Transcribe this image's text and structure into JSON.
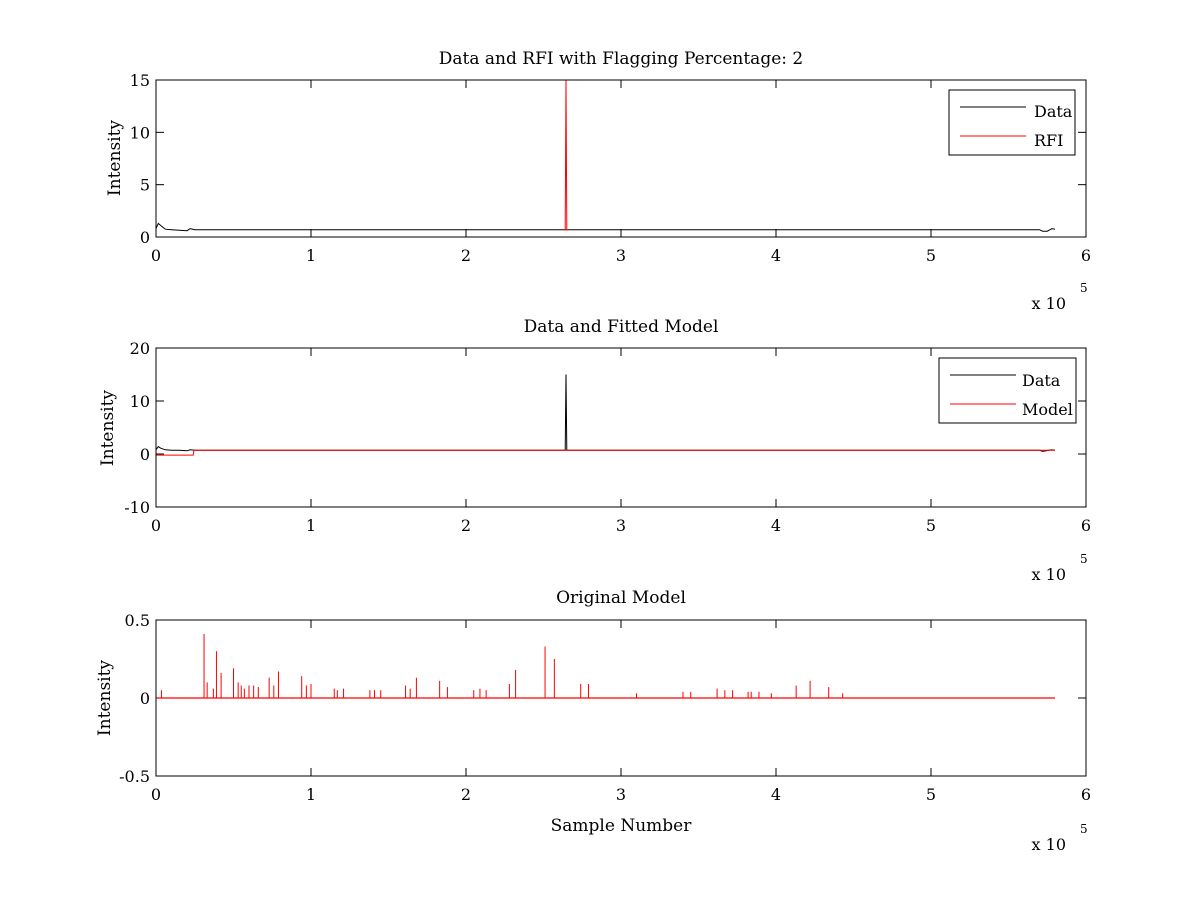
{
  "chart_data": [
    {
      "type": "line",
      "title": "Data and RFI with Flagging Percentage: 2",
      "xlabel": "",
      "ylabel": "Intensity",
      "xlim": [
        0,
        600000
      ],
      "ylim": [
        0,
        15
      ],
      "xticks": [
        0,
        1,
        2,
        3,
        4,
        5,
        6
      ],
      "xtick_labels": [
        "0",
        "1",
        "2",
        "3",
        "4",
        "5",
        "6"
      ],
      "yticks": [
        0,
        5,
        10,
        15
      ],
      "ytick_labels": [
        "0",
        "5",
        "10",
        "15"
      ],
      "x_multiplier": "x 10",
      "x_multiplier_exp": "5",
      "legend_position": "top-right",
      "series": [
        {
          "name": "Data",
          "color": "#000000",
          "x": [
            0,
            1500,
            3000,
            6000,
            10000,
            15000,
            20000,
            22000,
            25000,
            60000,
            100000,
            150000,
            200000,
            250000,
            262000,
            264500,
            266000,
            300000,
            350000,
            400000,
            450000,
            500000,
            550000,
            570000,
            572000,
            575000,
            578000,
            580000
          ],
          "y": [
            0.8,
            1.3,
            1.1,
            0.75,
            0.7,
            0.65,
            0.6,
            0.8,
            0.7,
            0.7,
            0.7,
            0.7,
            0.7,
            0.7,
            0.7,
            0.7,
            0.7,
            0.7,
            0.7,
            0.7,
            0.7,
            0.7,
            0.7,
            0.7,
            0.55,
            0.55,
            0.8,
            0.75
          ]
        },
        {
          "name": "RFI",
          "color": "#ff0000",
          "x": [
            263000,
            264000,
            264500,
            265000,
            266000
          ],
          "y": [
            0.7,
            0.7,
            15,
            0.7,
            0.7
          ]
        }
      ]
    },
    {
      "type": "line",
      "title": "Data and Fitted Model",
      "xlabel": "",
      "ylabel": "Intensity",
      "xlim": [
        0,
        600000
      ],
      "ylim": [
        -10,
        20
      ],
      "xticks": [
        0,
        1,
        2,
        3,
        4,
        5,
        6
      ],
      "xtick_labels": [
        "0",
        "1",
        "2",
        "3",
        "4",
        "5",
        "6"
      ],
      "yticks": [
        -10,
        0,
        10,
        20
      ],
      "ytick_labels": [
        "-10",
        "0",
        "10",
        "20"
      ],
      "x_multiplier": "x 10",
      "x_multiplier_exp": "5",
      "legend_position": "top-right",
      "series": [
        {
          "name": "Data",
          "color": "#000000",
          "x": [
            0,
            1500,
            3000,
            6000,
            10000,
            15000,
            20000,
            22000,
            25000,
            100000,
            200000,
            263000,
            264000,
            264500,
            265000,
            266000,
            300000,
            400000,
            500000,
            570000,
            572000,
            578000,
            580000
          ],
          "y": [
            0.8,
            1.4,
            1.1,
            0.8,
            0.7,
            0.7,
            0.6,
            0.8,
            0.7,
            0.7,
            0.7,
            0.7,
            0.7,
            15,
            0.7,
            0.7,
            0.7,
            0.7,
            0.7,
            0.7,
            0.5,
            0.8,
            0.7
          ]
        },
        {
          "name": "Model",
          "color": "#ff0000",
          "x": [
            0,
            24000,
            24500,
            100000,
            200000,
            300000,
            400000,
            500000,
            580000
          ],
          "y": [
            -0.2,
            -0.2,
            0.7,
            0.7,
            0.7,
            0.7,
            0.7,
            0.7,
            0.7
          ]
        }
      ]
    },
    {
      "type": "line",
      "title": "Original Model",
      "xlabel": "Sample Number",
      "ylabel": "Intensity",
      "xlim": [
        0,
        600000
      ],
      "ylim": [
        -0.5,
        0.5
      ],
      "xticks": [
        0,
        1,
        2,
        3,
        4,
        5,
        6
      ],
      "xtick_labels": [
        "0",
        "1",
        "2",
        "3",
        "4",
        "5",
        "6"
      ],
      "yticks": [
        -0.5,
        0,
        0.5
      ],
      "ytick_labels": [
        "-0.5",
        "0",
        "0.5"
      ],
      "x_multiplier": "x 10",
      "x_multiplier_exp": "5",
      "legend_position": "none",
      "series": [
        {
          "color": "#ff0000",
          "baseline": 0,
          "x_end": 580000,
          "peaks_x": [
            3500,
            31000,
            33000,
            37000,
            39000,
            42000,
            50000,
            53000,
            55000,
            57000,
            60000,
            63000,
            66000,
            73000,
            76000,
            79000,
            94000,
            97000,
            100000,
            115000,
            117000,
            121000,
            138000,
            141000,
            145000,
            161000,
            164000,
            168000,
            183000,
            188000,
            205000,
            209000,
            213000,
            228000,
            232000,
            251000,
            257000,
            274000,
            279000,
            310000,
            340000,
            345000,
            362000,
            367000,
            372000,
            382000,
            384000,
            389000,
            397000,
            413000,
            422000,
            434000,
            443000
          ],
          "peaks_y": [
            0.05,
            0.41,
            0.1,
            0.06,
            0.3,
            0.16,
            0.19,
            0.1,
            0.08,
            0.06,
            0.08,
            0.08,
            0.07,
            0.13,
            0.08,
            0.17,
            0.14,
            0.08,
            0.09,
            0.06,
            0.05,
            0.06,
            0.05,
            0.05,
            0.05,
            0.08,
            0.06,
            0.13,
            0.11,
            0.07,
            0.05,
            0.06,
            0.05,
            0.09,
            0.18,
            0.33,
            0.25,
            0.09,
            0.09,
            0.03,
            0.04,
            0.04,
            0.06,
            0.05,
            0.05,
            0.04,
            0.04,
            0.04,
            0.03,
            0.08,
            0.11,
            0.07,
            0.03
          ]
        }
      ]
    }
  ]
}
